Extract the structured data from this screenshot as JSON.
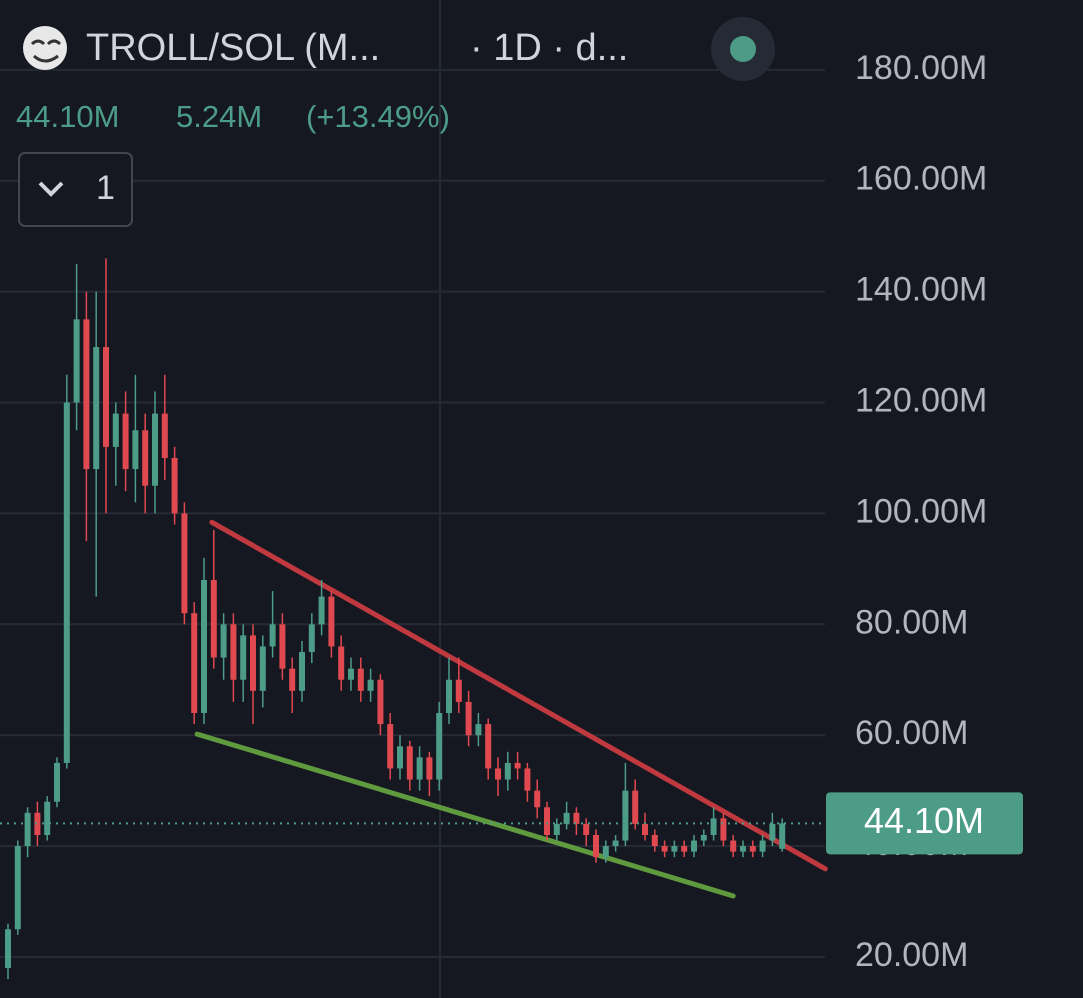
{
  "chart_data": {
    "type": "candlestick",
    "title": "TROLL/SOL (M...",
    "interval": "· 1D · d...",
    "change": "5.24M",
    "change_pct": "(+13.49%)",
    "button_label": "1",
    "up_color": "#4c9c88",
    "down_color": "#e0494f",
    "ylim": [
      12.6,
      192.6
    ],
    "yticks": [
      {
        "value": 20,
        "label": "20.00M"
      },
      {
        "value": 40,
        "label": "40.00M"
      },
      {
        "value": 60,
        "label": "60.00M"
      },
      {
        "value": 80,
        "label": "80.00M"
      },
      {
        "value": 100,
        "label": "100.00M"
      },
      {
        "value": 120,
        "label": "120.00M"
      },
      {
        "value": 140,
        "label": "140.00M"
      },
      {
        "value": 160,
        "label": "160.00M"
      },
      {
        "value": 180,
        "label": "180.00M"
      }
    ],
    "grid": true,
    "price_line": {
      "value": 44.1,
      "label": "44.10M"
    },
    "open": [
      18,
      25,
      40,
      46,
      42,
      48,
      55,
      120,
      135,
      108,
      130,
      112,
      118,
      108,
      115,
      105,
      118,
      110,
      100,
      82,
      64,
      88,
      74,
      80,
      70,
      78,
      68,
      76,
      80,
      72,
      68,
      75,
      80,
      85,
      76,
      70,
      72,
      68,
      70,
      62,
      54,
      58,
      52,
      56,
      52,
      64,
      70,
      66,
      60,
      62,
      54,
      52,
      55,
      54,
      50,
      47,
      42,
      44,
      46,
      44,
      42,
      38,
      40,
      41,
      50,
      44,
      42,
      40,
      39,
      40,
      39,
      41,
      42,
      45,
      41,
      39,
      40,
      39,
      41,
      39.5
    ],
    "high": [
      26,
      41,
      47,
      48,
      49,
      56,
      125,
      145,
      140,
      140,
      146,
      120,
      122,
      125,
      118,
      122,
      125,
      112,
      102,
      84,
      92,
      97,
      82,
      82,
      80,
      80,
      78,
      86,
      82,
      74,
      77,
      82,
      88,
      86,
      78,
      74,
      74,
      72,
      71,
      64,
      60,
      59,
      58,
      57,
      66,
      74,
      74,
      68,
      64,
      63,
      56,
      57,
      57,
      55,
      52,
      48,
      45,
      48,
      47,
      45,
      43,
      41,
      42,
      55,
      52,
      46,
      43,
      41,
      41,
      41,
      42,
      43,
      47,
      46,
      42,
      41,
      41,
      42,
      46,
      45
    ],
    "low": [
      16,
      24,
      38,
      40,
      41,
      47,
      54,
      115,
      95,
      85,
      100,
      105,
      104,
      102,
      100,
      100,
      106,
      98,
      80,
      62,
      62,
      72,
      70,
      66,
      66,
      62,
      65,
      74,
      70,
      64,
      66,
      73,
      78,
      74,
      68,
      68,
      66,
      66,
      60,
      52,
      52,
      50,
      50,
      49,
      50,
      62,
      64,
      58,
      58,
      52,
      49,
      50,
      52,
      48,
      45,
      41,
      41,
      43,
      42,
      40,
      37,
      37,
      39,
      40,
      43,
      41,
      39,
      38,
      38,
      38,
      38,
      40,
      41,
      40,
      38,
      38,
      38,
      38,
      40,
      39
    ],
    "close": [
      25,
      40,
      46,
      42,
      48,
      55,
      120,
      135,
      108,
      130,
      112,
      118,
      108,
      115,
      105,
      118,
      110,
      100,
      82,
      64,
      88,
      74,
      80,
      70,
      78,
      68,
      76,
      80,
      72,
      68,
      75,
      80,
      85,
      76,
      70,
      72,
      68,
      70,
      62,
      54,
      58,
      52,
      56,
      52,
      64,
      70,
      66,
      60,
      62,
      54,
      52,
      55,
      54,
      50,
      47,
      42,
      44,
      46,
      44,
      42,
      38,
      40,
      41,
      50,
      44,
      42,
      40,
      39,
      40,
      39,
      41,
      42,
      45,
      41,
      39,
      40,
      39,
      41,
      44,
      44.1
    ],
    "trendlines": [
      {
        "color": "#c0393f",
        "points": [
          [
            20.8,
            98.4
          ],
          [
            83.4,
            35.9
          ]
        ]
      },
      {
        "color": "#5f9a3f",
        "points": [
          [
            19.3,
            60.2
          ],
          [
            74,
            31.0
          ]
        ]
      }
    ]
  }
}
